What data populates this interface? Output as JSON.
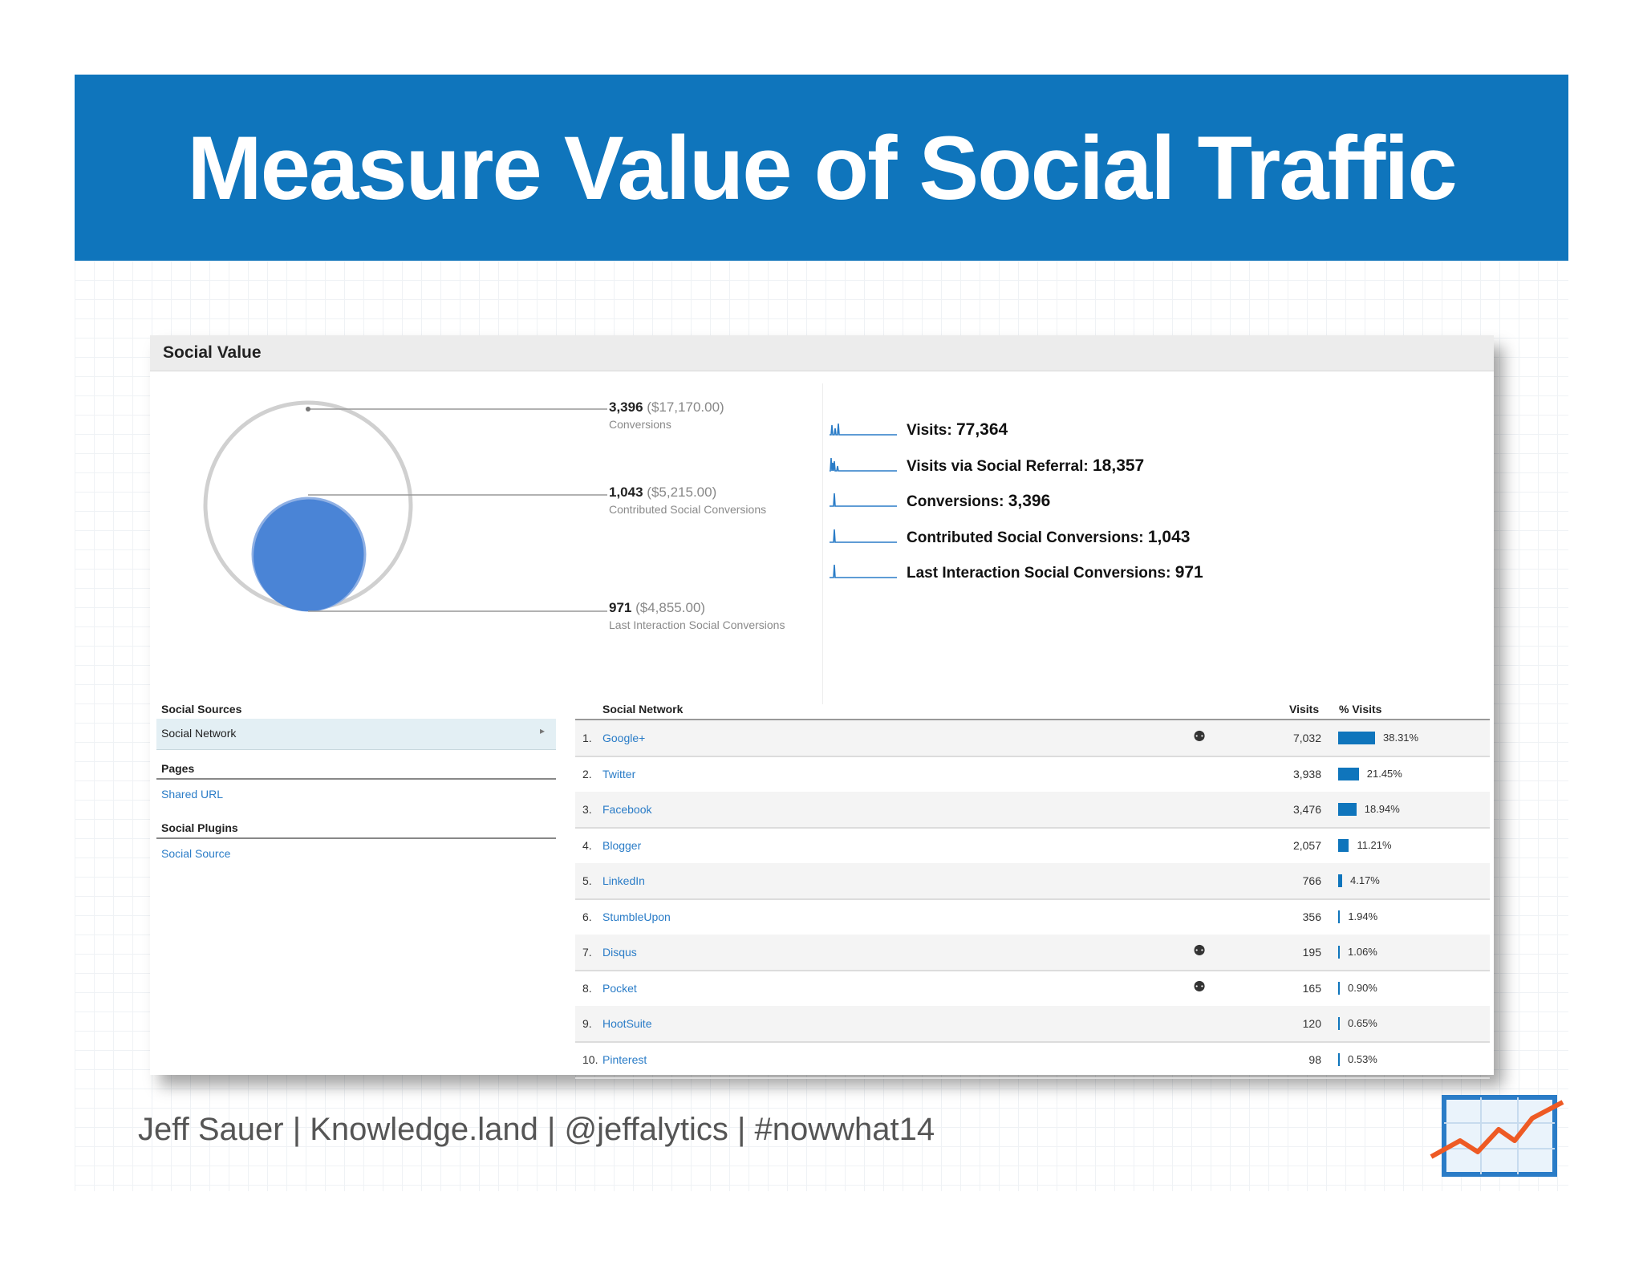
{
  "slide": {
    "title": "Measure Value of Social Traffic",
    "footer": "Jeff Sauer | Knowledge.land | @jeffalytics | #nowwhat14"
  },
  "panel": {
    "title": "Social Value",
    "conversions": [
      {
        "value": "3,396",
        "money": "($17,170.00)",
        "label": "Conversions"
      },
      {
        "value": "1,043",
        "money": "($5,215.00)",
        "label": "Contributed Social Conversions"
      },
      {
        "value": "971",
        "money": "($4,855.00)",
        "label": "Last Interaction Social Conversions"
      }
    ],
    "metrics": [
      {
        "label": "Visits:",
        "value": "77,364"
      },
      {
        "label": "Visits via Social Referral:",
        "value": "18,357"
      },
      {
        "label": "Conversions:",
        "value": "3,396"
      },
      {
        "label": "Contributed Social Conversions:",
        "value": "1,043"
      },
      {
        "label": "Last Interaction Social Conversions:",
        "value": "971"
      }
    ]
  },
  "nav": {
    "sources_heading": "Social Sources",
    "selected": "Social Network",
    "pages_heading": "Pages",
    "pages_link": "Shared URL",
    "plugins_heading": "Social Plugins",
    "plugins_link": "Social Source"
  },
  "table": {
    "headers": {
      "network": "Social Network",
      "visits": "Visits",
      "pct": "% Visits"
    },
    "rows": [
      {
        "num": "1.",
        "network": "Google+",
        "hub": true,
        "visits": "7,032",
        "pct": "38.31%",
        "share": 38.31
      },
      {
        "num": "2.",
        "network": "Twitter",
        "hub": false,
        "visits": "3,938",
        "pct": "21.45%",
        "share": 21.45
      },
      {
        "num": "3.",
        "network": "Facebook",
        "hub": false,
        "visits": "3,476",
        "pct": "18.94%",
        "share": 18.94
      },
      {
        "num": "4.",
        "network": "Blogger",
        "hub": false,
        "visits": "2,057",
        "pct": "11.21%",
        "share": 11.21
      },
      {
        "num": "5.",
        "network": "LinkedIn",
        "hub": false,
        "visits": "766",
        "pct": "4.17%",
        "share": 4.17
      },
      {
        "num": "6.",
        "network": "StumbleUpon",
        "hub": false,
        "visits": "356",
        "pct": "1.94%",
        "share": 1.94
      },
      {
        "num": "7.",
        "network": "Disqus",
        "hub": true,
        "visits": "195",
        "pct": "1.06%",
        "share": 1.06
      },
      {
        "num": "8.",
        "network": "Pocket",
        "hub": true,
        "visits": "165",
        "pct": "0.90%",
        "share": 0.9
      },
      {
        "num": "9.",
        "network": "HootSuite",
        "hub": false,
        "visits": "120",
        "pct": "0.65%",
        "share": 0.65
      },
      {
        "num": "10.",
        "network": "Pinterest",
        "hub": false,
        "visits": "98",
        "pct": "0.53%",
        "share": 0.53
      }
    ]
  },
  "colors": {
    "banner": "#0f75bc",
    "bar": "#0f75bc",
    "circle_fill": "#4a84d6",
    "link": "#2a7cc7"
  },
  "icons": {
    "hub": "data-hub-icon",
    "logo": "trend-chart-logo-icon",
    "nav_arrow": "caret-right-icon"
  }
}
